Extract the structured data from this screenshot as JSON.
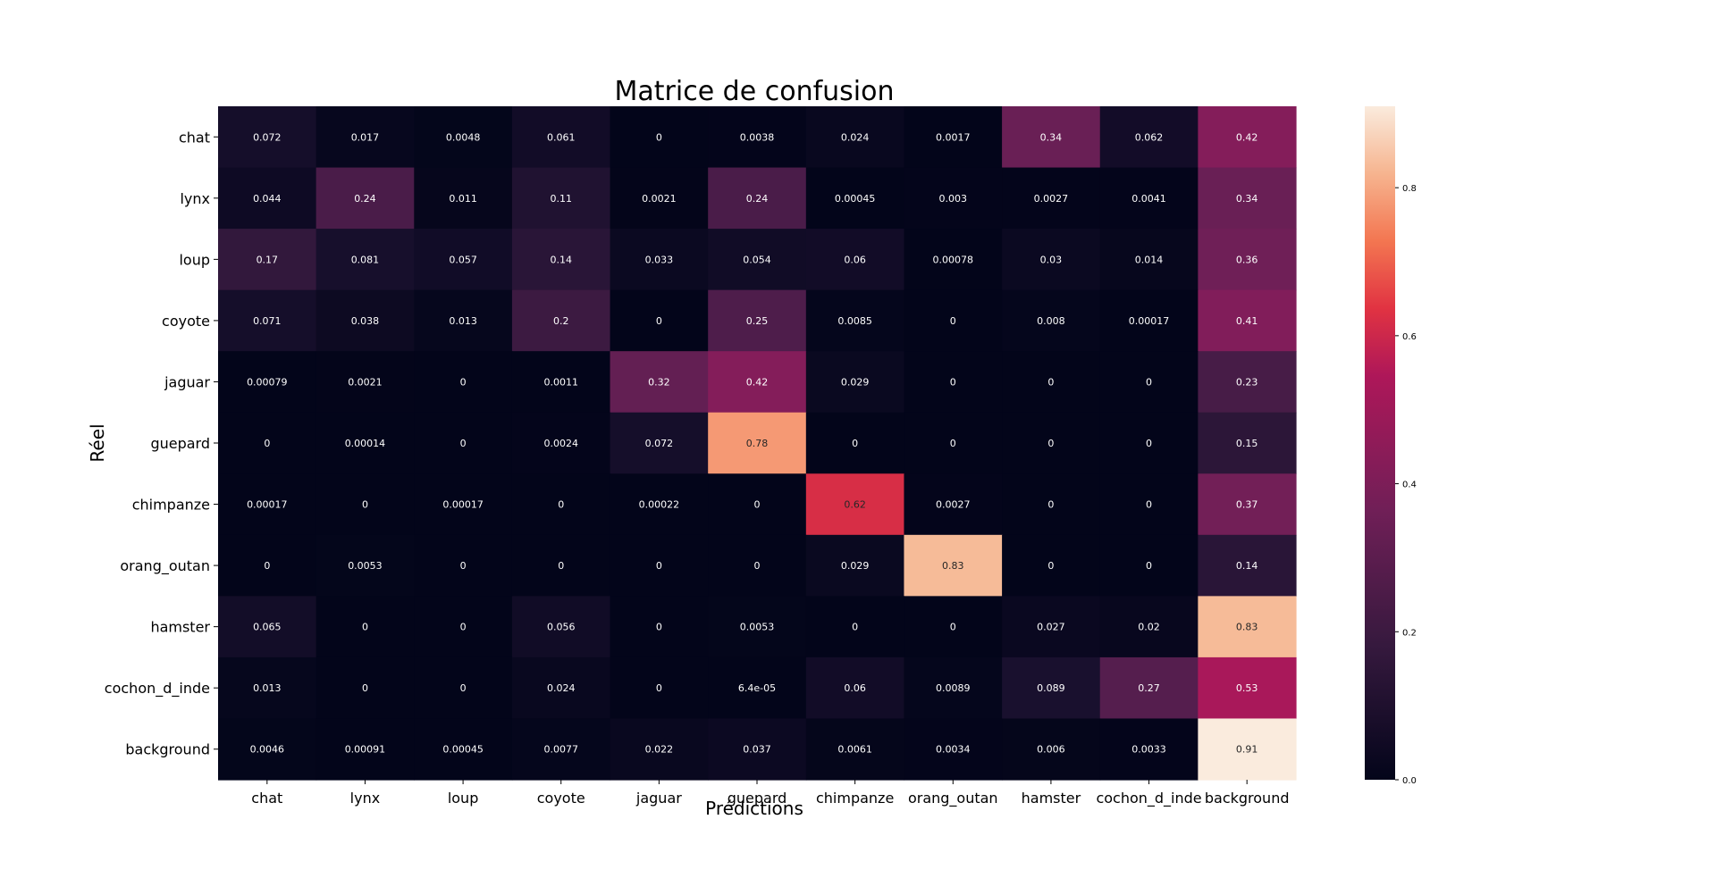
{
  "chart_data": {
    "type": "heatmap",
    "title": "Matrice de confusion",
    "xlabel": "Prédictions",
    "ylabel": "Réel",
    "x_categories": [
      "chat",
      "lynx",
      "loup",
      "coyote",
      "jaguar",
      "guepard",
      "chimpanze",
      "orang_outan",
      "hamster",
      "cochon_d_inde",
      "background"
    ],
    "y_categories": [
      "chat",
      "lynx",
      "loup",
      "coyote",
      "jaguar",
      "guepard",
      "chimpanze",
      "orang_outan",
      "hamster",
      "cochon_d_inde",
      "background"
    ],
    "values": [
      [
        "0.072",
        "0.017",
        "0.0048",
        "0.061",
        "0",
        "0.0038",
        "0.024",
        "0.0017",
        "0.34",
        "0.062",
        "0.42"
      ],
      [
        "0.044",
        "0.24",
        "0.011",
        "0.11",
        "0.0021",
        "0.24",
        "0.00045",
        "0.003",
        "0.0027",
        "0.0041",
        "0.34"
      ],
      [
        "0.17",
        "0.081",
        "0.057",
        "0.14",
        "0.033",
        "0.054",
        "0.06",
        "0.00078",
        "0.03",
        "0.014",
        "0.36"
      ],
      [
        "0.071",
        "0.038",
        "0.013",
        "0.2",
        "0",
        "0.25",
        "0.0085",
        "0",
        "0.008",
        "0.00017",
        "0.41"
      ],
      [
        "0.00079",
        "0.0021",
        "0",
        "0.0011",
        "0.32",
        "0.42",
        "0.029",
        "0",
        "0",
        "0",
        "0.23"
      ],
      [
        "0",
        "0.00014",
        "0",
        "0.0024",
        "0.072",
        "0.78",
        "0",
        "0",
        "0",
        "0",
        "0.15"
      ],
      [
        "0.00017",
        "0",
        "0.00017",
        "0",
        "0.00022",
        "0",
        "0.62",
        "0.0027",
        "0",
        "0",
        "0.37"
      ],
      [
        "0",
        "0.0053",
        "0",
        "0",
        "0",
        "0",
        "0.029",
        "0.83",
        "0",
        "0",
        "0.14"
      ],
      [
        "0.065",
        "0",
        "0",
        "0.056",
        "0",
        "0.0053",
        "0",
        "0",
        "0.027",
        "0.02",
        "0.83"
      ],
      [
        "0.013",
        "0",
        "0",
        "0.024",
        "0",
        "6.4e-05",
        "0.06",
        "0.0089",
        "0.089",
        "0.27",
        "0.53"
      ],
      [
        "0.0046",
        "0.00091",
        "0.00045",
        "0.0077",
        "0.022",
        "0.037",
        "0.0061",
        "0.0034",
        "0.006",
        "0.0033",
        "0.91"
      ]
    ],
    "color_range": [
      0,
      0.91
    ],
    "colorbar_ticks": [
      "0.0",
      "0.2",
      "0.4",
      "0.6",
      "0.8"
    ],
    "colormap": "rocket",
    "legend": "colorbar-right"
  }
}
